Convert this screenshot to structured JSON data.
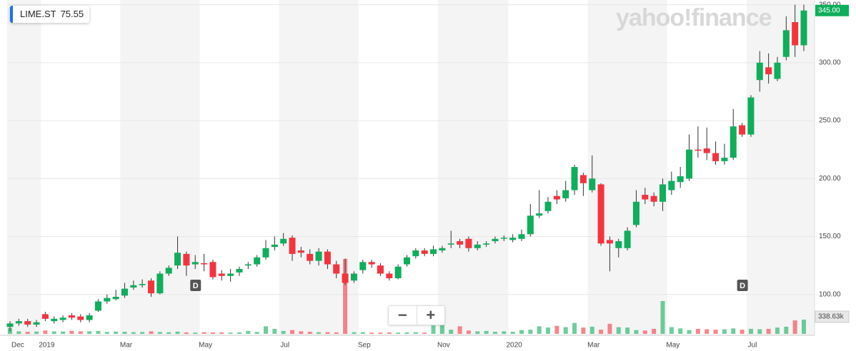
{
  "ticker": {
    "symbol": "LIME.ST",
    "price": 75.55
  },
  "logo": "yahoo!finance",
  "zoom": {
    "out": "−",
    "in": "+"
  },
  "chart_data": {
    "type": "candlestick",
    "categories": [
      "Dec",
      null,
      null,
      null,
      "2019",
      null,
      null,
      null,
      null,
      null,
      null,
      null,
      null,
      "Mar",
      null,
      null,
      null,
      null,
      null,
      null,
      null,
      null,
      "May",
      null,
      null,
      null,
      null,
      null,
      null,
      null,
      null,
      "Jul",
      null,
      null,
      null,
      null,
      null,
      null,
      null,
      null,
      "Sep",
      null,
      null,
      null,
      null,
      null,
      null,
      null,
      null,
      "Nov",
      null,
      null,
      null,
      null,
      null,
      null,
      null,
      "2020",
      null,
      null,
      null,
      null,
      null,
      null,
      null,
      null,
      "Mar",
      null,
      null,
      null,
      null,
      null,
      null,
      null,
      null,
      "May",
      null,
      null,
      null,
      null,
      null,
      null,
      null,
      null,
      "Jul",
      null,
      null,
      null,
      null,
      null,
      null
    ],
    "open": [
      72,
      75,
      77,
      74,
      83,
      77,
      78,
      82,
      81,
      78,
      86,
      94,
      96,
      99,
      106,
      108,
      112,
      101,
      118,
      125,
      135,
      126,
      127,
      128,
      118,
      116,
      119,
      125,
      126,
      132,
      141,
      144,
      149,
      138,
      135,
      129,
      137,
      126,
      118,
      112,
      121,
      128,
      125,
      118,
      114,
      126,
      133,
      138,
      135,
      138,
      143,
      146,
      148,
      140,
      143,
      146,
      149,
      147,
      148,
      152,
      168,
      172,
      185,
      183,
      190,
      203,
      190,
      195,
      147,
      140,
      140,
      160,
      186,
      185,
      180,
      190,
      197,
      200,
      225,
      226,
      222,
      215,
      218,
      246,
      238,
      285,
      296,
      286,
      305,
      335,
      315
    ],
    "high": [
      77,
      79,
      79,
      78,
      85,
      81,
      82,
      84,
      83,
      84,
      96,
      100,
      104,
      110,
      112,
      113,
      114,
      120,
      125,
      150,
      137,
      134,
      135,
      130,
      121,
      122,
      124,
      128,
      134,
      147,
      150,
      153,
      151,
      141,
      139,
      140,
      139,
      129,
      131,
      120,
      130,
      130,
      127,
      120,
      126,
      134,
      140,
      140,
      142,
      142,
      155,
      148,
      150,
      146,
      146,
      150,
      151,
      152,
      156,
      178,
      190,
      184,
      190,
      198,
      212,
      205,
      220,
      196,
      150,
      148,
      158,
      190,
      192,
      188,
      200,
      206,
      210,
      238,
      245,
      244,
      232,
      230,
      260,
      248,
      272,
      310,
      308,
      305,
      340,
      350,
      350
    ],
    "low": [
      68,
      73,
      72,
      72,
      77,
      75,
      76,
      78,
      76,
      76,
      85,
      92,
      95,
      97,
      104,
      106,
      98,
      100,
      116,
      122,
      116,
      122,
      120,
      113,
      112,
      111,
      116,
      122,
      124,
      130,
      138,
      142,
      129,
      132,
      126,
      125,
      122,
      114,
      108,
      110,
      118,
      123,
      116,
      112,
      113,
      124,
      131,
      133,
      133,
      136,
      140,
      140,
      137,
      138,
      141,
      144,
      146,
      145,
      146,
      150,
      166,
      170,
      178,
      180,
      186,
      185,
      188,
      142,
      120,
      132,
      138,
      158,
      178,
      176,
      172,
      186,
      192,
      198,
      218,
      216,
      212,
      212,
      216,
      236,
      236,
      275,
      282,
      284,
      302,
      305,
      310
    ],
    "close": [
      75,
      77,
      74,
      76,
      79,
      79,
      80,
      80,
      78,
      82,
      94,
      97,
      98,
      105,
      108,
      109,
      101,
      118,
      123,
      136,
      125,
      128,
      126,
      115,
      116,
      118,
      122,
      126,
      132,
      140,
      143,
      148,
      135,
      136,
      129,
      137,
      126,
      118,
      110,
      118,
      128,
      126,
      118,
      114,
      124,
      132,
      138,
      135,
      139,
      140,
      144,
      143,
      140,
      143,
      144,
      148,
      149,
      149,
      152,
      168,
      170,
      180,
      182,
      190,
      210,
      196,
      200,
      144,
      144,
      146,
      155,
      180,
      182,
      180,
      195,
      198,
      202,
      225,
      224,
      222,
      215,
      218,
      245,
      238,
      270,
      300,
      290,
      300,
      328,
      315,
      345
    ],
    "volume": [
      140000,
      60000,
      50000,
      55000,
      80000,
      60000,
      55000,
      70000,
      60000,
      60000,
      70000,
      45000,
      55000,
      50000,
      40000,
      45000,
      60000,
      45000,
      40000,
      55000,
      35000,
      30000,
      40000,
      35000,
      35000,
      30000,
      35000,
      70000,
      45000,
      180000,
      120000,
      70000,
      90000,
      60000,
      50000,
      40000,
      40000,
      35000,
      1780000,
      40000,
      40000,
      30000,
      30000,
      35000,
      30000,
      35000,
      40000,
      30000,
      200000,
      210000,
      100000,
      180000,
      80000,
      60000,
      70000,
      50000,
      60000,
      50000,
      90000,
      100000,
      180000,
      150000,
      190000,
      160000,
      260000,
      150000,
      170000,
      100000,
      240000,
      160000,
      150000,
      90000,
      80000,
      120000,
      780000,
      160000,
      130000,
      90000,
      120000,
      110000,
      100000,
      110000,
      130000,
      100000,
      120000,
      110000,
      120000,
      150000,
      170000,
      320000,
      338630
    ],
    "last_price": {
      "value": 345,
      "label": "345.00"
    },
    "last_volume": {
      "value": 338630,
      "label": "338.63k"
    },
    "dividend_markers": [
      "D",
      "D"
    ],
    "up_color": "#0eae5c",
    "down_color": "#f5333f",
    "ylim": [
      66,
      351
    ],
    "yticks": [
      {
        "value": 100,
        "label": "100.00"
      },
      {
        "value": 150,
        "label": "150.00"
      },
      {
        "value": 200,
        "label": "200.00"
      },
      {
        "value": 250,
        "label": "250.00"
      },
      {
        "value": 300,
        "label": "300.00"
      },
      {
        "value": 350,
        "label": "350.00"
      }
    ],
    "grid": true
  }
}
